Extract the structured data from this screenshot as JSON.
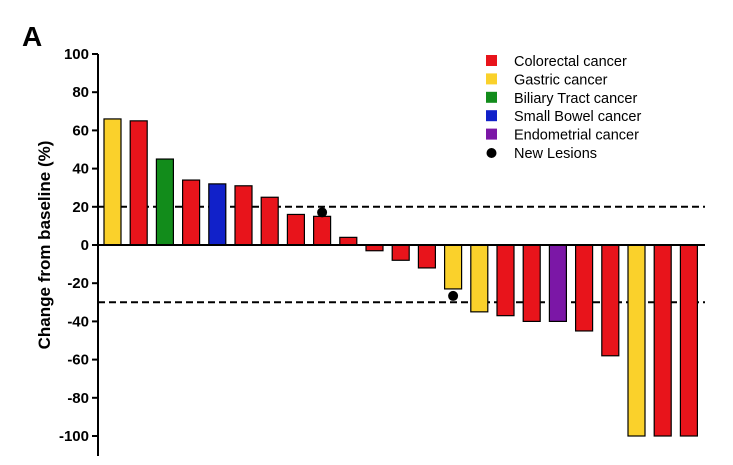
{
  "panel_label": "A",
  "chart_data": {
    "type": "bar",
    "title": "",
    "xlabel": "",
    "ylabel": "Change from baseline (%)",
    "ylim": [
      -100,
      100
    ],
    "yticks": [
      100,
      80,
      60,
      40,
      20,
      0,
      -20,
      -40,
      -60,
      -80,
      -100
    ],
    "grid": false,
    "legend_position": "top-right",
    "reference_lines": [
      20,
      -30
    ],
    "series": [
      {
        "name": "Colorectal cancer",
        "color": "#e8141b"
      },
      {
        "name": "Gastric cancer",
        "color": "#fad12b"
      },
      {
        "name": "Biliary Tract cancer",
        "color": "#128c1b"
      },
      {
        "name": "Small Bowel cancer",
        "color": "#1121c9"
      },
      {
        "name": "Endometrial cancer",
        "color": "#7b17a6"
      }
    ],
    "marker_legend": "New Lesions",
    "bars": [
      {
        "value": 66,
        "type": "Gastric cancer"
      },
      {
        "value": 65,
        "type": "Colorectal cancer"
      },
      {
        "value": 45,
        "type": "Biliary Tract cancer"
      },
      {
        "value": 34,
        "type": "Colorectal cancer"
      },
      {
        "value": 32,
        "type": "Small Bowel cancer"
      },
      {
        "value": 31,
        "type": "Colorectal cancer"
      },
      {
        "value": 25,
        "type": "Colorectal cancer"
      },
      {
        "value": 16,
        "type": "Colorectal cancer"
      },
      {
        "value": 15,
        "type": "Colorectal cancer",
        "new_lesion": true
      },
      {
        "value": 4,
        "type": "Colorectal cancer"
      },
      {
        "value": -3,
        "type": "Colorectal cancer"
      },
      {
        "value": -8,
        "type": "Colorectal cancer"
      },
      {
        "value": -12,
        "type": "Colorectal cancer"
      },
      {
        "value": -23,
        "type": "Gastric cancer",
        "new_lesion": true
      },
      {
        "value": -35,
        "type": "Gastric cancer"
      },
      {
        "value": -37,
        "type": "Colorectal cancer"
      },
      {
        "value": -40,
        "type": "Colorectal cancer"
      },
      {
        "value": -40,
        "type": "Endometrial cancer"
      },
      {
        "value": -45,
        "type": "Colorectal cancer"
      },
      {
        "value": -58,
        "type": "Colorectal cancer"
      },
      {
        "value": -100,
        "type": "Gastric cancer"
      },
      {
        "value": -100,
        "type": "Colorectal cancer"
      },
      {
        "value": -100,
        "type": "Colorectal cancer"
      }
    ]
  }
}
